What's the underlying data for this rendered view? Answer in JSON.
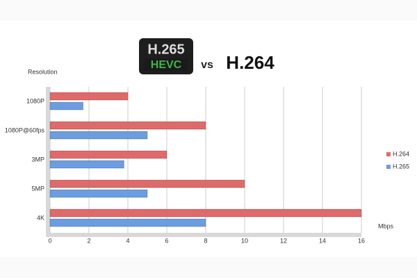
{
  "chart_data": {
    "type": "hbar",
    "title": {
      "logo_top": "H.265",
      "logo_bottom": "HEVC",
      "vs": "vs",
      "right": "H.264"
    },
    "y_label": "Resolution",
    "x_label": "Mbps",
    "categories": [
      "1080P",
      "1080P@60fps",
      "3MP",
      "5MP",
      "4K"
    ],
    "series": [
      {
        "name": "H.264",
        "color": "#e06a6a",
        "values": [
          4,
          8,
          6,
          10,
          16
        ]
      },
      {
        "name": "H.265",
        "color": "#6b9de0",
        "values": [
          1.7,
          5,
          3.8,
          5,
          8
        ]
      }
    ],
    "xlim": [
      0,
      16
    ],
    "xticks": [
      0,
      2,
      4,
      6,
      8,
      10,
      12,
      14,
      16
    ],
    "grid": true,
    "legend": "right"
  }
}
